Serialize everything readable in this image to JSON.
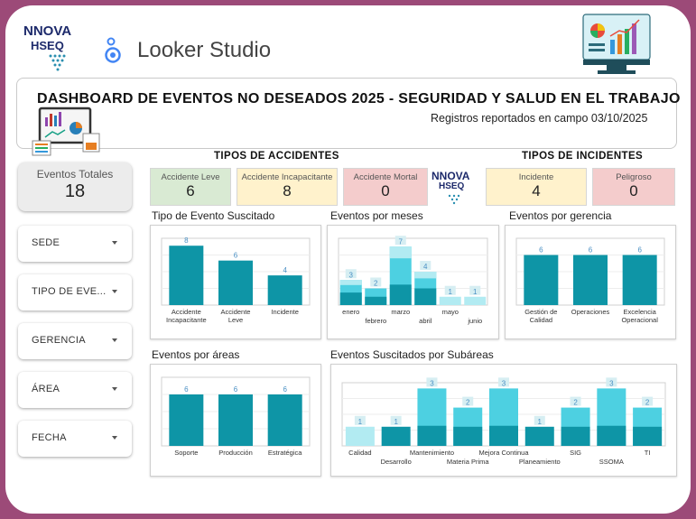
{
  "brand": {
    "logo_line1": "NNOVA",
    "logo_line2": "HSEQ",
    "app_name": "Looker Studio"
  },
  "header": {
    "title": "DASHBOARD DE EVENTOS NO DESEADOS 2025 - SEGURIDAD Y SALUD EN EL TRABAJO",
    "subtitle": "Registros reportados en campo 03/10/2025"
  },
  "accidents": {
    "title": "TIPOS DE ACCIDENTES",
    "cards": [
      {
        "label": "Accidente Leve",
        "value": "6",
        "color": "#d9ead3"
      },
      {
        "label": "Accidente Incapacitante",
        "value": "8",
        "color": "#fff2cc"
      },
      {
        "label": "Accidente Mortal",
        "value": "0",
        "color": "#f4cccc"
      }
    ]
  },
  "incidents": {
    "title": "TIPOS DE INCIDENTES",
    "cards": [
      {
        "label": "Incidente",
        "value": "4",
        "color": "#fff2cc"
      },
      {
        "label": "Peligroso",
        "value": "0",
        "color": "#f4cccc"
      }
    ]
  },
  "totals": {
    "label": "Eventos Totales",
    "value": "18"
  },
  "filters": [
    "SEDE",
    "TIPO DE EVE...",
    "GERENCIA",
    "ÁREA",
    "FECHA"
  ],
  "colors": {
    "bar": "#0e95a6",
    "bar_light": "#4dd0e1",
    "bar_lighter": "#b2ebf2",
    "label": "#4a90c4"
  },
  "chart_data": [
    {
      "type": "bar",
      "title": "Tipo de Evento Suscitado",
      "categories": [
        "Accidente\nIncapacitante",
        "Accidente\nLeve",
        "Incidente"
      ],
      "values": [
        8,
        6,
        4
      ],
      "ylim": [
        0,
        9
      ]
    },
    {
      "type": "bar",
      "title": "Eventos por meses",
      "categories": [
        "enero",
        "febrero",
        "marzo",
        "abril",
        "mayo",
        "junio"
      ],
      "values": [
        3,
        2,
        7,
        4,
        1,
        1
      ],
      "ylim": [
        0,
        8
      ]
    },
    {
      "type": "bar",
      "title": "Eventos por gerencia",
      "categories": [
        "Gestión de\nCalidad",
        "Operaciones",
        "Excelencia\nOperacional"
      ],
      "values": [
        6,
        6,
        6
      ],
      "ylim": [
        0,
        8
      ]
    },
    {
      "type": "bar",
      "title": "Eventos por áreas",
      "categories": [
        "Soporte",
        "Producción",
        "Estratégica"
      ],
      "values": [
        6,
        6,
        6
      ],
      "ylim": [
        0,
        8
      ]
    },
    {
      "type": "bar",
      "title": "Eventos Suscitados por Subáreas",
      "categories": [
        "Calidad",
        "Desarrollo",
        "Mantenimiento",
        "Materia Prima",
        "Mejora Continua",
        "Planeamiento",
        "SIG",
        "SSOMA",
        "TI"
      ],
      "values": [
        1,
        1,
        3,
        2,
        3,
        1,
        2,
        3,
        2
      ],
      "ylim": [
        0,
        3.3
      ]
    }
  ]
}
